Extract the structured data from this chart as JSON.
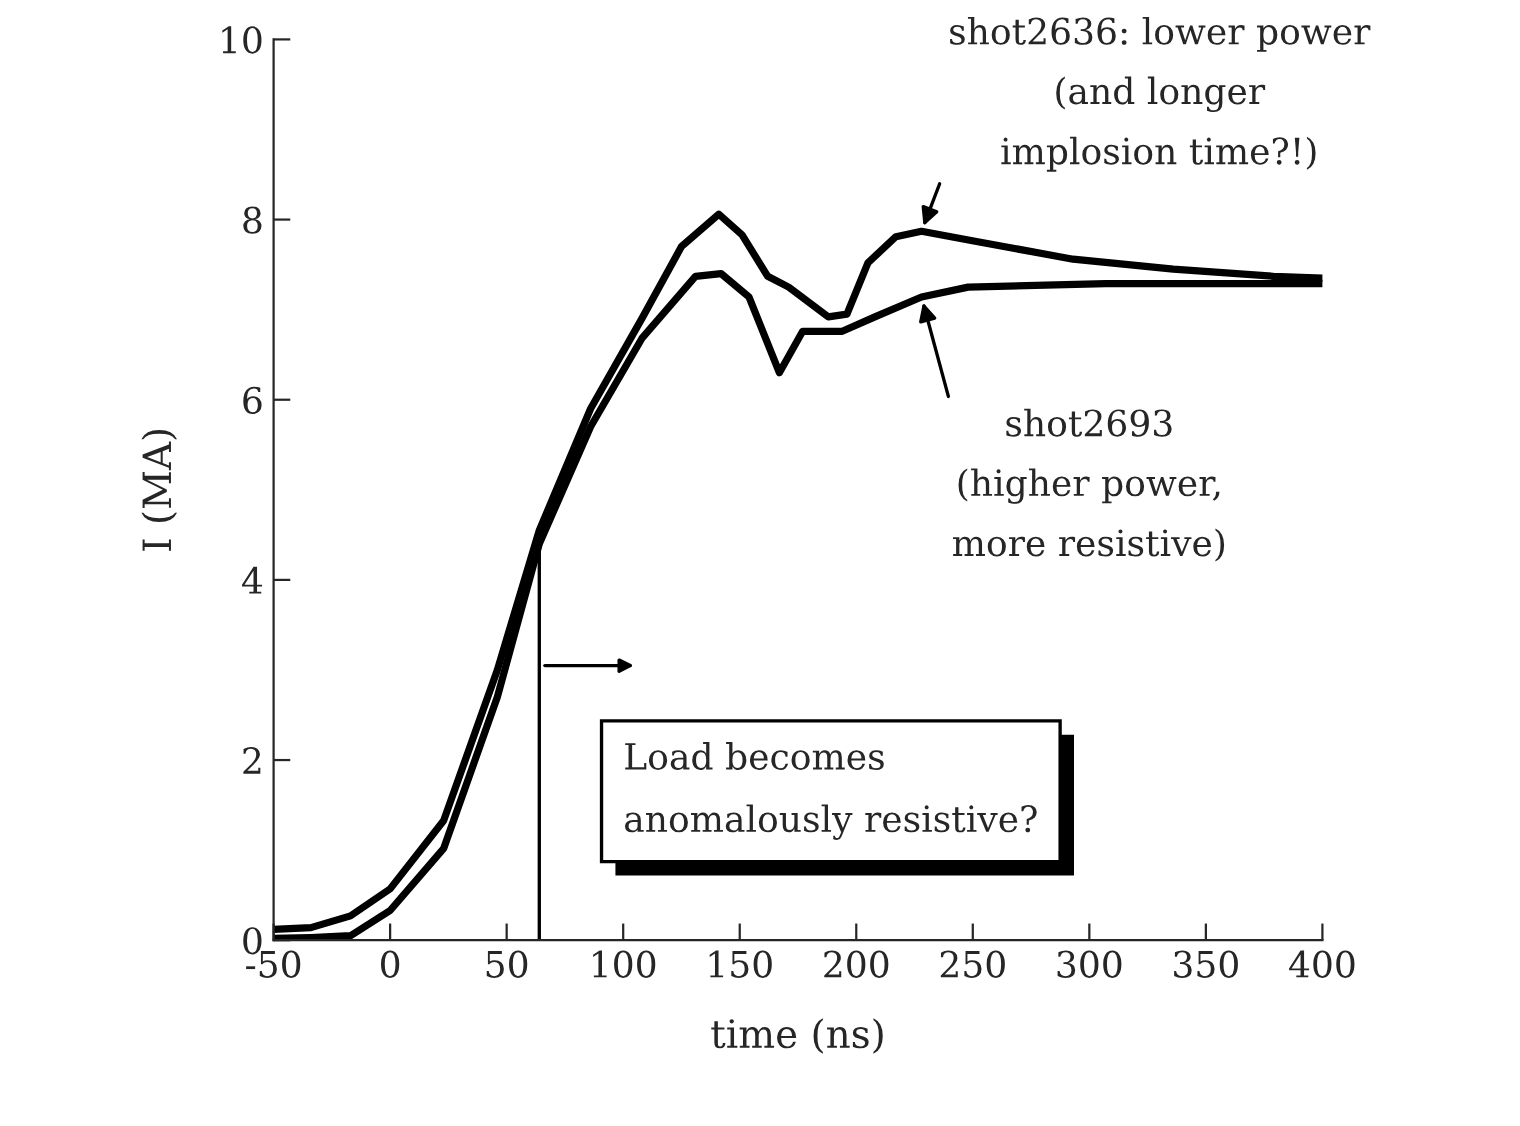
{
  "chart_data": {
    "type": "line",
    "xlabel": "time (ns)",
    "ylabel": "I (MA)",
    "xlim": [
      -50,
      400
    ],
    "xticks": [
      -50,
      0,
      50,
      100,
      150,
      200,
      250,
      300,
      350,
      400
    ],
    "ylim": [
      0,
      10
    ],
    "yticks": [
      0,
      2,
      4,
      6,
      8,
      10
    ],
    "grid": false,
    "legend": false,
    "marker": "none",
    "line_style": "solid",
    "series": [
      {
        "color": "#000000",
        "x": [
          -50,
          -34,
          -17,
          0,
          23,
          46,
          64,
          86,
          108,
          125,
          141,
          151,
          162,
          171,
          188,
          196,
          205,
          217,
          228,
          251,
          293,
          336,
          379,
          400
        ],
        "values": [
          0.12,
          0.14,
          0.27,
          0.57,
          1.33,
          3.0,
          4.55,
          5.9,
          6.9,
          7.7,
          8.06,
          7.83,
          7.37,
          7.25,
          6.92,
          6.95,
          7.52,
          7.81,
          7.87,
          7.76,
          7.56,
          7.45,
          7.37,
          7.35
        ]
      },
      {
        "color": "#000000",
        "x": [
          -50,
          -34,
          -17,
          0,
          23,
          46,
          64,
          86,
          108,
          131,
          142,
          154,
          167,
          177,
          194,
          208,
          228,
          248,
          307,
          400
        ],
        "values": [
          0.02,
          0.03,
          0.05,
          0.33,
          1.02,
          2.7,
          4.4,
          5.7,
          6.68,
          7.37,
          7.4,
          7.14,
          6.3,
          6.76,
          6.76,
          6.92,
          7.14,
          7.25,
          7.29,
          7.29
        ]
      }
    ],
    "ref_lines": [
      {
        "axis": "x",
        "value": 64,
        "color": "#000000"
      }
    ],
    "annotations": [
      {
        "text": "shot2636: lower power\n(and longer\nimplosion time?!)",
        "x": 228,
        "y": 7.87
      },
      {
        "text": "shot2693\n(higher power,\nmore resistive)",
        "x": 228,
        "y": 7.14
      },
      "Load becomes\nanomalously resistive?"
    ]
  }
}
